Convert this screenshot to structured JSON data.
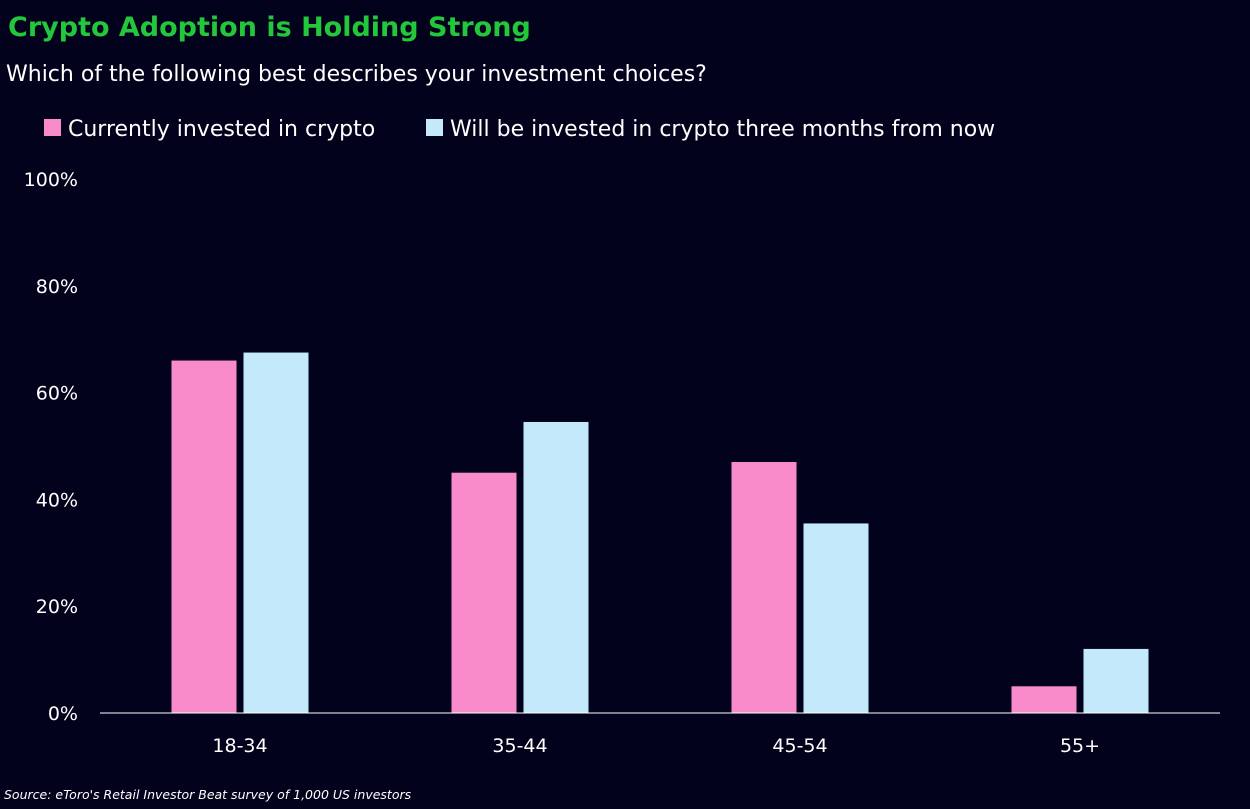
{
  "chart_data": {
    "type": "bar",
    "title": "Crypto Adoption is Holding Strong",
    "subtitle": "Which of the following best describes your investment choices?",
    "categories": [
      "18-34",
      "35-44",
      "45-54",
      "55+"
    ],
    "series": [
      {
        "name": "Currently invested in crypto",
        "values": [
          66,
          45,
          47,
          5
        ],
        "color": "#f98bcb"
      },
      {
        "name": "Will be invested in crypto three months from now",
        "values": [
          67.5,
          54.5,
          35.5,
          12
        ],
        "color": "#c3e9fb"
      }
    ],
    "ylim": [
      0,
      100
    ],
    "y_ticks": [
      "0%",
      "20%",
      "40%",
      "60%",
      "80%",
      "100%"
    ],
    "y_tick_values": [
      0,
      20,
      40,
      60,
      80,
      100
    ],
    "grid": false,
    "legend_position": "top-left",
    "source": "Source: eToro's Retail Investor Beat survey of 1,000 US investors"
  },
  "colors": {
    "background": "#02021c",
    "title": "#22c73b",
    "text": "#ffffff",
    "axis": "#ffffff"
  }
}
